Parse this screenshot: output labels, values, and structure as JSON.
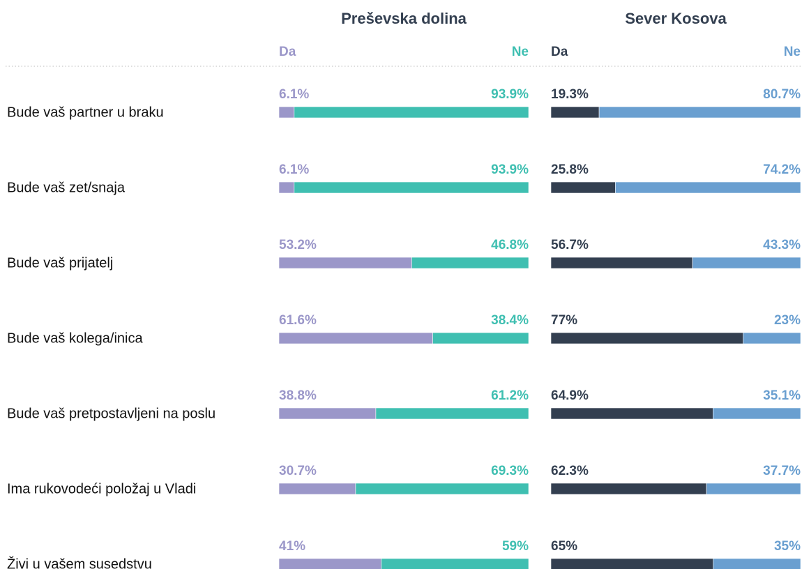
{
  "chart_data": [
    {
      "type": "stacked-bar",
      "title": "Preševska dolina",
      "categories": [
        "Bude vaš partner u braku",
        "Bude vaš zet/snaja",
        "Bude vaš prijatelj",
        "Bude vaš kolega/inica",
        "Bude vaš pretpostavljeni na poslu",
        "Ima rukovodeći položaj u Vladi",
        "Živi u vašem susedstvu"
      ],
      "series": [
        {
          "name": "Da",
          "color": "#9b97c9",
          "values": [
            6.1,
            6.1,
            53.2,
            61.6,
            38.8,
            30.7,
            41
          ],
          "value_labels": [
            "6.1%",
            "6.1%",
            "53.2%",
            "61.6%",
            "38.8%",
            "30.7%",
            "41%"
          ]
        },
        {
          "name": "Ne",
          "color": "#3fbfb1",
          "values": [
            93.9,
            93.9,
            46.8,
            38.4,
            61.2,
            69.3,
            59
          ],
          "value_labels": [
            "93.9%",
            "93.9%",
            "46.8%",
            "38.4%",
            "61.2%",
            "69.3%",
            "59%"
          ]
        }
      ]
    },
    {
      "type": "stacked-bar",
      "title": "Sever Kosova",
      "series": [
        {
          "name": "Da",
          "color": "#333f50",
          "values": [
            19.3,
            25.8,
            56.7,
            77,
            64.9,
            62.3,
            65
          ],
          "value_labels": [
            "19.3%",
            "25.8%",
            "56.7%",
            "77%",
            "64.9%",
            "62.3%",
            "65%"
          ]
        },
        {
          "name": "Ne",
          "color": "#6a9fd0",
          "values": [
            80.7,
            74.2,
            43.3,
            23,
            35.1,
            37.7,
            35
          ],
          "value_labels": [
            "80.7%",
            "74.2%",
            "43.3%",
            "23%",
            "35.1%",
            "37.7%",
            "35%"
          ]
        }
      ]
    }
  ]
}
